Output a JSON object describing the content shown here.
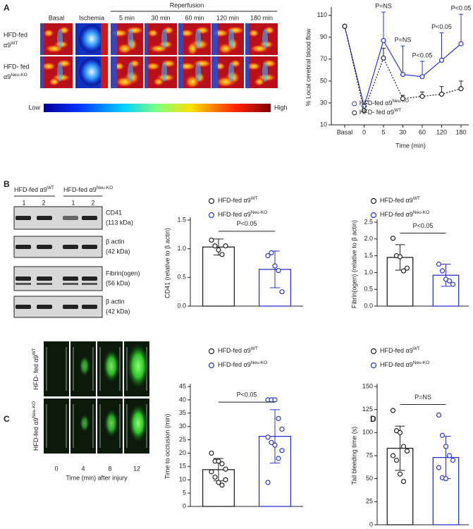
{
  "panel_a": {
    "letter": "A",
    "reperfusion": "Reperfusion",
    "columns": [
      "Basal",
      "Ischemia",
      "5 min",
      "30 min",
      "60 min",
      "120 min",
      "180 min"
    ],
    "rows": [
      {
        "line1": "HFD-fed",
        "line2": "α9",
        "sup": "WT"
      },
      {
        "line1": "HFD- fed",
        "line2": "α9",
        "sup": "Neu-KO"
      }
    ],
    "scale_low": "Low",
    "scale_high": "High"
  },
  "panel_b": {
    "letter": "B",
    "groups": [
      {
        "name": "HFD-fed α9",
        "sup": "WT",
        "lanes": [
          "1",
          "2"
        ]
      },
      {
        "name": "HFD-fed α9",
        "sup": "Neu-KO",
        "lanes": [
          "1",
          "2"
        ]
      }
    ],
    "blots": [
      {
        "label": "CD41",
        "size": "(113 kDa)"
      },
      {
        "label": "β actin",
        "size": "(42 kDa)"
      },
      {
        "label": "Fibrin(ogen)",
        "size": "(56 kDa)"
      },
      {
        "label": "β actin",
        "size": "(42 kDa)"
      }
    ]
  },
  "panel_c": {
    "letter": "C",
    "rows": [
      {
        "text": "HFD- fed α9",
        "sup": "WT"
      },
      {
        "text": "HFD-fed α9",
        "sup": "Neu-KO"
      }
    ],
    "times": [
      "0",
      "4",
      "8",
      "12"
    ],
    "time_label": "Time (min) after injury"
  },
  "panel_d": {
    "letter": "D"
  },
  "chart_data": [
    {
      "type": "line",
      "y_label": "% Local cerebral blood flow",
      "x_label": "Time (min)",
      "categories": [
        "Basal",
        "0",
        "5",
        "30",
        "60",
        "120",
        "180"
      ],
      "ylim": [
        10,
        115
      ],
      "yticks": [
        10,
        30,
        50,
        70,
        90,
        110
      ],
      "legend": "lower right",
      "series": [
        {
          "name": "HFD-fed α9",
          "name_sup": "Neu-KO",
          "color": "#2b35c9",
          "values": [
            100,
            27,
            87,
            56,
            54,
            69,
            84
          ],
          "errors": [
            null,
            null,
            26,
            26,
            14,
            25,
            27
          ]
        },
        {
          "name": "HFD- fed α9",
          "name_sup": "WT",
          "color": "#222222",
          "values": [
            100,
            23,
            71,
            34,
            36,
            38,
            43
          ],
          "errors": [
            null,
            null,
            9,
            3,
            4,
            7,
            7
          ]
        }
      ],
      "annotations": [
        {
          "text": "P=NS",
          "x": "5"
        },
        {
          "text": "P=NS",
          "x": "30"
        },
        {
          "text": "P<0.05",
          "x": "60"
        },
        {
          "text": "P<0.05",
          "x": "120"
        },
        {
          "text": "P<0.05",
          "x": "180"
        }
      ]
    },
    {
      "type": "bar",
      "y_label": "CD41 (relative to β actin)",
      "ylim": [
        0,
        1.5
      ],
      "yticks": [
        {
          "value": 0,
          "label": "0.0"
        },
        0.5,
        {
          "value": 1,
          "label": "1.0"
        },
        1.5
      ],
      "annotation": "P<0.05",
      "series": [
        {
          "name": "HFD-fed α9",
          "name_sup": "WT",
          "color": "#222222",
          "values": [
            1.03
          ],
          "errors": [
            0.14
          ],
          "points": [
            1.15,
            1.05,
            0.98,
            0.9,
            1.05
          ]
        },
        {
          "name": "HFD-fed α9",
          "name_sup": "Neu-KO",
          "color": "#2b35c9",
          "values": [
            0.64
          ],
          "errors": [
            0.32
          ],
          "points": [
            0.88,
            0.93,
            0.7,
            0.62,
            0.25
          ]
        }
      ]
    },
    {
      "type": "bar",
      "y_label": "Fibrin(ogen)  (relative to β actin)",
      "ylim": [
        0,
        2.5
      ],
      "yticks": [
        {
          "value": 0,
          "label": "0.0"
        },
        0.5,
        {
          "value": 1,
          "label": "1.0"
        },
        1.5,
        {
          "value": 2,
          "label": "2.0"
        },
        2.5
      ],
      "annotation": "P<0.05",
      "series": [
        {
          "name": "HFD-fed α9",
          "name_sup": "WT",
          "color": "#222222",
          "values": [
            1.45
          ],
          "errors": [
            0.38
          ],
          "points": [
            2.02,
            1.5,
            1.47,
            1.05,
            1.13
          ]
        },
        {
          "name": "HFD-fed α9",
          "name_sup": "Neu-KO",
          "color": "#2b35c9",
          "values": [
            0.92
          ],
          "errors": [
            0.33
          ],
          "points": [
            1.25,
            1.05,
            0.8,
            0.75,
            0.65
          ]
        }
      ]
    },
    {
      "type": "bar",
      "y_label": "Time to occlusion (min)",
      "ylim": [
        0,
        45
      ],
      "yticks": [
        0,
        5,
        10,
        15,
        20,
        25,
        30,
        35,
        40,
        45
      ],
      "annotation": "P<0.05",
      "series": [
        {
          "name": "HFD-fed α9",
          "name_sup": "WT",
          "color": "#222222",
          "values": [
            13.8
          ],
          "errors": [
            4.2
          ],
          "points": [
            20,
            17,
            17,
            16,
            14,
            13,
            11,
            9,
            8,
            10
          ]
        },
        {
          "name": "HFD-fed α9",
          "name_sup": "Neu-KO",
          "color": "#2b35c9",
          "values": [
            26.3
          ],
          "errors": [
            10
          ],
          "points": [
            40,
            40,
            40,
            33,
            29,
            26,
            24,
            23,
            18,
            21,
            9
          ]
        }
      ]
    },
    {
      "type": "bar",
      "y_label": "Tail bleeding time (s)",
      "ylim": [
        0,
        150
      ],
      "yticks": [
        0,
        25,
        50,
        75,
        100,
        125,
        150
      ],
      "annotation": "P=NS",
      "series": [
        {
          "name": "HFD-fed α9",
          "name_sup": "WT",
          "color": "#222222",
          "values": [
            83
          ],
          "errors": [
            24
          ],
          "points": [
            124,
            102,
            100,
            85,
            80,
            75,
            70,
            55,
            47
          ]
        },
        {
          "name": "HFD-fed α9",
          "name_sup": "Neu-KO",
          "color": "#2b35c9",
          "values": [
            73
          ],
          "errors": [
            23
          ],
          "points": [
            119,
            97,
            85,
            75,
            70,
            62,
            51,
            50
          ]
        }
      ]
    }
  ]
}
